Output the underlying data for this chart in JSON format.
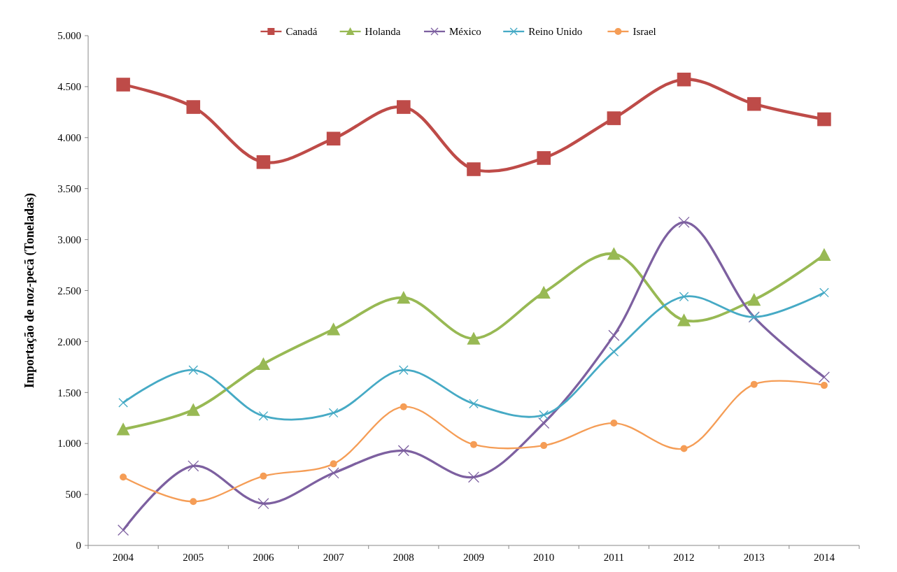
{
  "chart_data": {
    "type": "line",
    "ylabel": "Importação de noz-pecã (Toneladas)",
    "categories": [
      "2004",
      "2005",
      "2006",
      "2007",
      "2008",
      "2009",
      "2010",
      "2011",
      "2012",
      "2013",
      "2014"
    ],
    "series": [
      {
        "name": "Canadá",
        "color": "#be4b48",
        "marker": "square",
        "values": [
          4520,
          4300,
          3760,
          3990,
          4300,
          3690,
          3800,
          4190,
          4570,
          4330,
          4180
        ]
      },
      {
        "name": "Holanda",
        "color": "#98b954",
        "marker": "triangle",
        "values": [
          1140,
          1330,
          1780,
          2120,
          2430,
          2030,
          2480,
          2860,
          2210,
          2410,
          2850
        ]
      },
      {
        "name": "México",
        "color": "#7d60a0",
        "marker": "cross",
        "values": [
          150,
          780,
          410,
          710,
          930,
          670,
          1200,
          2060,
          3170,
          2240,
          1650
        ]
      },
      {
        "name": "Reino Unido",
        "color": "#46aac5",
        "marker": "cross",
        "values": [
          1400,
          1720,
          1270,
          1300,
          1720,
          1390,
          1280,
          1900,
          2440,
          2240,
          2480
        ]
      },
      {
        "name": "Israel",
        "color": "#f59d56",
        "marker": "circle",
        "values": [
          670,
          430,
          680,
          800,
          1360,
          990,
          980,
          1200,
          950,
          1580,
          1570
        ]
      }
    ],
    "ylim": [
      0,
      5000
    ],
    "yticks": [
      0,
      500,
      {
        "value": 1000,
        "label": "1.000"
      },
      {
        "value": 1500,
        "label": "1.500"
      },
      {
        "value": 2000,
        "label": "2.000"
      },
      {
        "value": 2500,
        "label": "2.500"
      },
      {
        "value": 3000,
        "label": "3.000"
      },
      {
        "value": 3500,
        "label": "3.500"
      },
      {
        "value": 4000,
        "label": "4.000"
      },
      {
        "value": 4500,
        "label": "4.500"
      },
      {
        "value": 5000,
        "label": "5.000"
      }
    ],
    "legend": "top",
    "line_style": "solid"
  }
}
